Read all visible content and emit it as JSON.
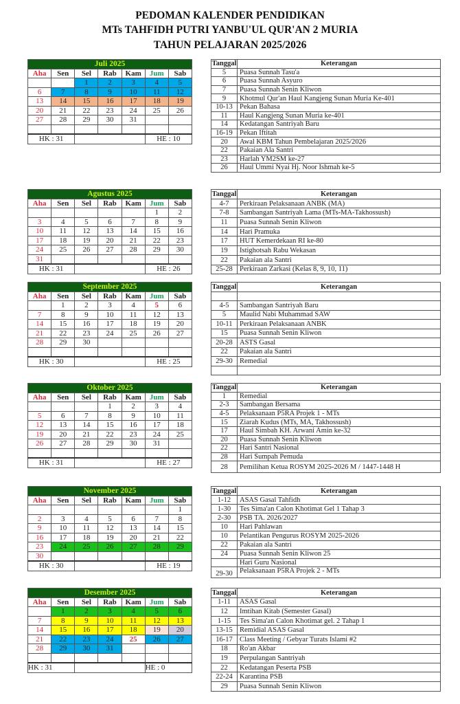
{
  "title": {
    "line1": "PEDOMAN KALENDER PENDIDIKAN",
    "line2": "MTs TAHFIDH PUTRI YANBU'UL QUR'AN 2 MURIA",
    "line3": "TAHUN PELAJARAN 2025/2026"
  },
  "day_names": [
    "Aha",
    "Sen",
    "Sel",
    "Rab",
    "Kam",
    "Jum",
    "Sab"
  ],
  "ket_headers": {
    "tanggal": "Tanggal",
    "keterangan": "Keterangan"
  },
  "colors": {
    "month_bar": "#0d5e12",
    "month_text": "#c6f01a",
    "sunday": "#d42a3a",
    "friday": "#1aa05a",
    "blue": "#00a8e8",
    "peach": "#f4b48a",
    "green": "#1cc01c",
    "yellow": "#ffff00",
    "pink": "#fbe3d6",
    "lavender": "#d3cde0"
  },
  "months": [
    {
      "name": "Juli 2025",
      "weeks": [
        [
          "",
          "",
          "1",
          "2",
          "3",
          "4",
          "5"
        ],
        [
          "6",
          "7",
          "8",
          "9",
          "10",
          "11",
          "12"
        ],
        [
          "13",
          "14",
          "15",
          "16",
          "17",
          "18",
          "19"
        ],
        [
          "20",
          "21",
          "22",
          "23",
          "24",
          "25",
          "26"
        ],
        [
          "27",
          "28",
          "29",
          "30",
          "31",
          "",
          ""
        ],
        [
          "",
          "",
          "",
          "",
          "",
          "",
          ""
        ]
      ],
      "highlights": {
        "1": "blue",
        "2": "blue",
        "3": "blue",
        "4": "blue",
        "5": "blue",
        "7": "blue",
        "8": "blue",
        "9": "blue",
        "10": "blue",
        "11": "blue",
        "12": "blue",
        "14": "peach",
        "15": "peach",
        "16": "peach",
        "17": "peach",
        "18": "peach",
        "19": "peach"
      },
      "red_days": [],
      "hk": "HK : 31",
      "he": "HE : 10",
      "events": [
        {
          "tanggal": "5",
          "keterangan": "Puasa Sunnah Tasu'a"
        },
        {
          "tanggal": "6",
          "keterangan": "Puasa Sunnah Asyuro"
        },
        {
          "tanggal": "7",
          "keterangan": "Puasa Sunnah Senin Kliwon"
        },
        {
          "tanggal": "9",
          "keterangan": "Khotmul Qur'an Haul Kangjeng Sunan Muria Ke-401"
        },
        {
          "tanggal": "10-13",
          "keterangan": "Pekan Bahasa"
        },
        {
          "tanggal": "11",
          "keterangan": "Haul Kangjeng Sunan Muria ke-401"
        },
        {
          "tanggal": "14",
          "keterangan": "Kedatangan Santriyah Baru"
        },
        {
          "tanggal": "16-19",
          "keterangan": "Pekan Iftitah"
        },
        {
          "tanggal": "20",
          "keterangan": "Awal KBM Tahun Pembelajaran 2025/2026"
        },
        {
          "tanggal": "22",
          "keterangan": "Pakaian Ala Santri"
        },
        {
          "tanggal": "23",
          "keterangan": "Harlah YM2SM ke-27"
        },
        {
          "tanggal": "26",
          "keterangan": "Haul Ummi Nyai Hj. Noor Ishmah ke-5"
        }
      ]
    },
    {
      "name": "Agustus 2025",
      "weeks": [
        [
          "",
          "",
          "",
          "",
          "",
          "1",
          "2"
        ],
        [
          "3",
          "4",
          "5",
          "6",
          "7",
          "8",
          "9"
        ],
        [
          "10",
          "11",
          "12",
          "13",
          "14",
          "15",
          "16"
        ],
        [
          "17",
          "18",
          "19",
          "20",
          "21",
          "22",
          "23"
        ],
        [
          "24",
          "25",
          "26",
          "27",
          "28",
          "29",
          "30"
        ],
        [
          "31",
          "",
          "",
          "",
          "",
          "",
          ""
        ]
      ],
      "highlights": {},
      "red_days": [],
      "hk": "HK : 31",
      "he": "HE : 26",
      "events": [
        {
          "tanggal": "4-7",
          "keterangan": "Perkiraan Pelaksanaan ANBK (MA)"
        },
        {
          "tanggal": "7-8",
          "keterangan": "Sambangan Santriyah Lama (MTs-MA-Takhossush)"
        },
        {
          "tanggal": "11",
          "keterangan": "Puasa Sunnah Senin Kliwon"
        },
        {
          "tanggal": "14",
          "keterangan": "Hari Pramuka"
        },
        {
          "tanggal": "17",
          "keterangan": "HUT Kemerdekaan RI ke-80"
        },
        {
          "tanggal": "19",
          "keterangan": "Istighotsah Rabu Wekasan"
        },
        {
          "tanggal": "22",
          "keterangan": "Pakaian ala Santri"
        },
        {
          "tanggal": "25-28",
          "keterangan": "Perkiraan Zarkasi (Kelas 8, 9, 10, 11)"
        }
      ]
    },
    {
      "name": "September 2025",
      "weeks": [
        [
          "",
          "1",
          "2",
          "3",
          "4",
          "5",
          "6"
        ],
        [
          "7",
          "8",
          "9",
          "10",
          "11",
          "12",
          "13"
        ],
        [
          "14",
          "15",
          "16",
          "17",
          "18",
          "19",
          "20"
        ],
        [
          "21",
          "22",
          "23",
          "24",
          "25",
          "26",
          "27"
        ],
        [
          "28",
          "29",
          "30",
          "",
          "",
          "",
          ""
        ],
        [
          "",
          "",
          "",
          "",
          "",
          "",
          ""
        ]
      ],
      "highlights": {},
      "red_days": [
        "5"
      ],
      "hk": "HK : 30",
      "he": "HE : 25",
      "events": [
        {
          "tanggal": "",
          "keterangan": ""
        },
        {
          "tanggal": "4-5",
          "keterangan": "Sambangan Santriyah Baru"
        },
        {
          "tanggal": "5",
          "keterangan": "Maulid Nabi Muhammad SAW"
        },
        {
          "tanggal": "10-11",
          "keterangan": "Perkiraan Pelaksanaan ANBK"
        },
        {
          "tanggal": "15",
          "keterangan": "Puasa Sunnah Senin Kliwon"
        },
        {
          "tanggal": "20-28",
          "keterangan": "ASTS Gasal"
        },
        {
          "tanggal": "22",
          "keterangan": "Pakaian ala Santri"
        },
        {
          "tanggal": "29-30",
          "keterangan": "Remedial"
        },
        {
          "tanggal": "",
          "keterangan": ""
        }
      ]
    },
    {
      "name": "Oktober 2025",
      "weeks": [
        [
          "",
          "",
          "",
          "1",
          "2",
          "3",
          "4"
        ],
        [
          "5",
          "6",
          "7",
          "8",
          "9",
          "10",
          "11"
        ],
        [
          "12",
          "13",
          "14",
          "15",
          "16",
          "17",
          "18"
        ],
        [
          "19",
          "20",
          "21",
          "22",
          "23",
          "24",
          "25"
        ],
        [
          "26",
          "27",
          "28",
          "29",
          "30",
          "31",
          ""
        ],
        [
          "",
          "",
          "",
          "",
          "",
          "",
          ""
        ]
      ],
      "highlights": {},
      "red_days": [],
      "hk": "HK : 31",
      "he": "HE : 27",
      "events": [
        {
          "tanggal": "1",
          "keterangan": "Remedial"
        },
        {
          "tanggal": "2-3",
          "keterangan": "Sambangan Bersama"
        },
        {
          "tanggal": "4-5",
          "keterangan": "Pelaksanaan P5RA Projek 1 - MTs"
        },
        {
          "tanggal": "15",
          "keterangan": "Ziarah Kudus (MTs, MA, Takhossush)"
        },
        {
          "tanggal": "17",
          "keterangan": "Haul Simbah KH. Arwani Amin ke-32"
        },
        {
          "tanggal": "20",
          "keterangan": "Puasa Sunnah Senin Kliwon"
        },
        {
          "tanggal": "22",
          "keterangan": "Hari Santri Nasional"
        },
        {
          "tanggal": "28",
          "keterangan": "Hari Sumpah Pemuda"
        },
        {
          "tanggal": "28",
          "keterangan": "Pemilihan Ketua ROSYM 2025-2026 M / 1447-1448 H"
        }
      ]
    },
    {
      "name": "November 2025",
      "weeks": [
        [
          "",
          "",
          "",
          "",
          "",
          "",
          "1"
        ],
        [
          "2",
          "3",
          "4",
          "5",
          "6",
          "7",
          "8"
        ],
        [
          "9",
          "10",
          "11",
          "12",
          "13",
          "14",
          "15"
        ],
        [
          "16",
          "17",
          "18",
          "19",
          "20",
          "21",
          "22"
        ],
        [
          "23",
          "24",
          "25",
          "26",
          "27",
          "28",
          "29"
        ],
        [
          "30",
          "",
          "",
          "",
          "",
          "",
          ""
        ]
      ],
      "highlights": {
        "24": "green",
        "25": "green",
        "26": "green",
        "27": "green",
        "28": "green",
        "29": "green"
      },
      "red_days": [],
      "hk": "HK : 30",
      "he": "HE : 19",
      "events": [
        {
          "tanggal": "1-12",
          "keterangan": "ASAS Gasal Tahfidh"
        },
        {
          "tanggal": "1-30",
          "keterangan": "Tes Sima'an Calon Khotimat Gel 1 Tahap 3"
        },
        {
          "tanggal": "2-30",
          "keterangan": "PSB TA. 2026/2027"
        },
        {
          "tanggal": "10",
          "keterangan": "Hari Pahlawan"
        },
        {
          "tanggal": "10",
          "keterangan": "Pelantikan Pengurus ROSYM 2025-2026"
        },
        {
          "tanggal": "22",
          "keterangan": "Pakaian ala Santri"
        },
        {
          "tanggal": "24",
          "keterangan": "Puasa Sunnah Senin Kliwon 25"
        },
        {
          "tanggal": "",
          "keterangan": "Hari Guru Nasional"
        },
        {
          "tanggal": "29-30",
          "keterangan": "Pelaksanaan P5RA Projek 2 - MTs"
        }
      ]
    },
    {
      "name": "Desember 2025",
      "weeks": [
        [
          "",
          "1",
          "2",
          "3",
          "4",
          "5",
          "6"
        ],
        [
          "7",
          "8",
          "9",
          "10",
          "11",
          "12",
          "13"
        ],
        [
          "14",
          "15",
          "16",
          "17",
          "18",
          "19",
          "20"
        ],
        [
          "21",
          "22",
          "23",
          "24",
          "25",
          "26",
          "27"
        ],
        [
          "28",
          "29",
          "30",
          "31",
          "",
          "",
          ""
        ],
        [
          "",
          "",
          "",
          "",
          "",
          "",
          ""
        ]
      ],
      "highlights": {
        "1": "green",
        "2": "green",
        "3": "green",
        "4": "green",
        "5": "green",
        "6": "green",
        "8": "yellow",
        "9": "yellow",
        "10": "yellow",
        "11": "yellow",
        "12": "yellow",
        "13": "yellow",
        "15": "yellow",
        "16": "yellow",
        "17": "yellow",
        "18": "yellow",
        "19": "pink",
        "20": "lavender",
        "22": "blue",
        "23": "blue",
        "24": "blue",
        "26": "blue",
        "27": "blue",
        "29": "blue",
        "30": "blue",
        "31": "blue"
      },
      "red_days": [
        "25"
      ],
      "hk": "HK : 31",
      "he": "HE : 0",
      "events": [
        {
          "tanggal": "1-11",
          "keterangan": "ASAS Gasal"
        },
        {
          "tanggal": "12",
          "keterangan": "Imtihan Kitab (Semester Gasal)"
        },
        {
          "tanggal": "1-15",
          "keterangan": "Tes Sima'an Calon Khotimat gel.  2 Tahap 1"
        },
        {
          "tanggal": "13-15",
          "keterangan": "Remidial ASAS Gasal"
        },
        {
          "tanggal": "16-17",
          "keterangan": "Class Meeting / Gebyar Turats Islami #2"
        },
        {
          "tanggal": "18",
          "keterangan": "Ro'an Akbar"
        },
        {
          "tanggal": "19",
          "keterangan": "Perpulangan Santriyah"
        },
        {
          "tanggal": "22",
          "keterangan": "Kedatangan Peserta PSB"
        },
        {
          "tanggal": "22-24",
          "keterangan": "Karantina PSB"
        },
        {
          "tanggal": "29",
          "keterangan": "Puasa Sunnah Senin Kliwon"
        }
      ]
    }
  ]
}
